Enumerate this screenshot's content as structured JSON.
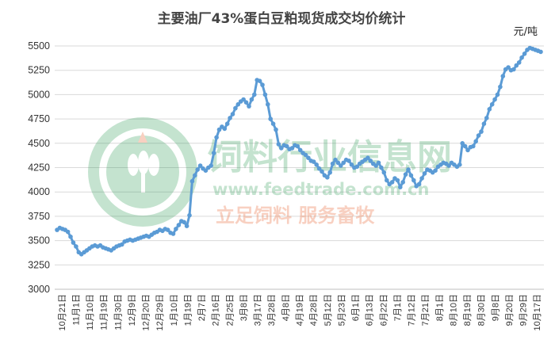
{
  "chart_data": {
    "type": "line",
    "title": "主要油厂43%蛋白豆粕现货成交均价统计",
    "unit_label": "元/吨",
    "ylim": [
      3000,
      5500
    ],
    "y_ticks": [
      "5500",
      "5250",
      "5000",
      "4750",
      "4500",
      "4250",
      "4000",
      "3750",
      "3500",
      "3250",
      "3000"
    ],
    "grid": "horizontal",
    "series_color": "#5B9BD5",
    "x_ticks": [
      "10月21日",
      "11月1日",
      "11月10日",
      "11月19日",
      "11月30日",
      "12月9日",
      "12月20日",
      "12月29日",
      "1月10日",
      "1月19日",
      "2月7日",
      "2月16日",
      "2月25日",
      "3月8日",
      "3月17日",
      "3月28日",
      "4月8日",
      "4月19日",
      "4月28日",
      "5月12日",
      "5月23日",
      "6月1日",
      "6月13日",
      "6月22日",
      "7月1日",
      "7月12日",
      "7月21日",
      "8月1日",
      "8月10日",
      "8月19日",
      "8月30日",
      "9月8日",
      "9月20日",
      "9月29日",
      "10月17日"
    ],
    "values": [
      3610,
      3630,
      3620,
      3610,
      3590,
      3540,
      3480,
      3440,
      3380,
      3360,
      3380,
      3400,
      3420,
      3440,
      3450,
      3440,
      3450,
      3430,
      3420,
      3410,
      3400,
      3420,
      3440,
      3450,
      3460,
      3490,
      3500,
      3510,
      3500,
      3510,
      3520,
      3530,
      3540,
      3550,
      3540,
      3560,
      3580,
      3590,
      3610,
      3600,
      3620,
      3610,
      3580,
      3570,
      3620,
      3660,
      3700,
      3690,
      3650,
      3760,
      4110,
      4170,
      4230,
      4270,
      4240,
      4220,
      4250,
      4270,
      4400,
      4560,
      4640,
      4670,
      4650,
      4700,
      4760,
      4800,
      4860,
      4900,
      4930,
      4950,
      4920,
      4880,
      4950,
      5000,
      5150,
      5140,
      5100,
      5000,
      4900,
      4750,
      4700,
      4640,
      4490,
      4450,
      4480,
      4470,
      4440,
      4450,
      4480,
      4470,
      4430,
      4400,
      4380,
      4350,
      4320,
      4310,
      4280,
      4240,
      4210,
      4170,
      4150,
      4200,
      4290,
      4330,
      4300,
      4270,
      4300,
      4330,
      4320,
      4280,
      4250,
      4260,
      4290,
      4310,
      4330,
      4350,
      4320,
      4290,
      4270,
      4300,
      4250,
      4200,
      4120,
      4080,
      4100,
      4140,
      4120,
      4050,
      4100,
      4180,
      4230,
      4170,
      4120,
      4060,
      4080,
      4140,
      4190,
      4230,
      4220,
      4200,
      4220,
      4260,
      4280,
      4300,
      4290,
      4270,
      4300,
      4280,
      4260,
      4280,
      4500,
      4470,
      4430,
      4460,
      4470,
      4520,
      4580,
      4620,
      4700,
      4760,
      4850,
      4900,
      4950,
      5000,
      5080,
      5190,
      5260,
      5280,
      5250,
      5260,
      5300,
      5330,
      5380,
      5420,
      5460,
      5480,
      5470,
      5460,
      5450,
      5440
    ]
  },
  "watermark": {
    "brand": "饲料行业信息网",
    "url": "www.feedtrade.com.cn",
    "slogan": "立足饲料   服务畜牧",
    "colors": {
      "green": "#2e9c57",
      "orange": "#e85a23"
    }
  }
}
